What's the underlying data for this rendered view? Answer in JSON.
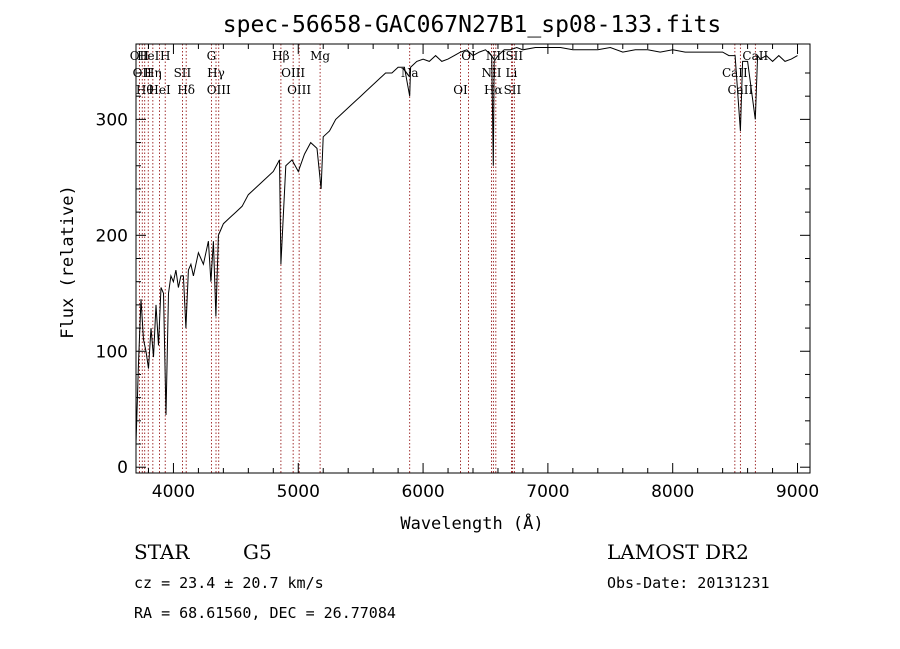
{
  "chart_data": {
    "type": "line",
    "title": "spec-56658-GAC067N27B1_sp08-133.fits",
    "xlabel": "Wavelength (Å)",
    "ylabel": "Flux (relative)",
    "xlim": [
      3700,
      9100
    ],
    "ylim": [
      -5,
      365
    ],
    "x_ticks": [
      4000,
      5000,
      6000,
      7000,
      8000,
      9000
    ],
    "y_ticks": [
      0,
      100,
      200,
      300
    ],
    "grid": false,
    "series_color": "#000000",
    "marker_color": "#8b0000",
    "series": [
      {
        "x": [
          3700,
          3720,
          3740,
          3760,
          3780,
          3800,
          3820,
          3840,
          3860,
          3880,
          3900,
          3920,
          3940,
          3960,
          3980,
          4000,
          4020,
          4040,
          4060,
          4080,
          4100,
          4120,
          4140,
          4160,
          4180,
          4200,
          4220,
          4240,
          4260,
          4280,
          4300,
          4320,
          4340,
          4360,
          4380,
          4400,
          4450,
          4500,
          4550,
          4600,
          4650,
          4700,
          4750,
          4800,
          4850,
          4861,
          4900,
          4950,
          5000,
          5050,
          5100,
          5150,
          5183,
          5200,
          5250,
          5300,
          5350,
          5400,
          5450,
          5500,
          5550,
          5600,
          5650,
          5700,
          5750,
          5800,
          5850,
          5893,
          5900,
          5950,
          6000,
          6050,
          6100,
          6150,
          6200,
          6250,
          6300,
          6350,
          6400,
          6450,
          6500,
          6550,
          6563,
          6570,
          6600,
          6650,
          6700,
          6750,
          6800,
          6900,
          7000,
          7100,
          7200,
          7300,
          7400,
          7500,
          7600,
          7700,
          7800,
          7900,
          8000,
          8100,
          8200,
          8300,
          8400,
          8450,
          8500,
          8542,
          8560,
          8600,
          8662,
          8680,
          8700,
          8750,
          8800,
          8850,
          8900,
          8950,
          9000
        ],
        "values": [
          20,
          90,
          145,
          110,
          100,
          85,
          120,
          95,
          140,
          105,
          155,
          150,
          45,
          150,
          165,
          160,
          170,
          155,
          165,
          165,
          120,
          170,
          175,
          165,
          175,
          185,
          180,
          175,
          185,
          195,
          160,
          195,
          130,
          200,
          205,
          210,
          215,
          220,
          225,
          235,
          240,
          245,
          250,
          255,
          265,
          175,
          260,
          265,
          255,
          270,
          280,
          275,
          240,
          285,
          290,
          300,
          305,
          310,
          315,
          320,
          325,
          330,
          335,
          340,
          340,
          345,
          345,
          320,
          345,
          350,
          352,
          350,
          355,
          350,
          352,
          355,
          358,
          360,
          355,
          358,
          360,
          355,
          260,
          350,
          355,
          360,
          360,
          362,
          360,
          362,
          362,
          362,
          360,
          360,
          360,
          362,
          358,
          360,
          360,
          358,
          360,
          358,
          358,
          358,
          358,
          355,
          355,
          290,
          350,
          350,
          300,
          355,
          352,
          355,
          350,
          355,
          350,
          352,
          355
        ]
      }
    ],
    "markers": [
      {
        "x": 3727,
        "label": "OII"
      },
      {
        "x": 3750,
        "label": "OII"
      },
      {
        "x": 3770,
        "label": "Hθ"
      },
      {
        "x": 3798,
        "label": "HeI"
      },
      {
        "x": 3835,
        "label": "Hη"
      },
      {
        "x": 3889,
        "label": "HeI"
      },
      {
        "x": 3934,
        "label": "H"
      },
      {
        "x": 4072,
        "label": "SII"
      },
      {
        "x": 4102,
        "label": "Hδ"
      },
      {
        "x": 4304,
        "label": "G"
      },
      {
        "x": 4341,
        "label": "Hγ"
      },
      {
        "x": 4363,
        "label": "OIII"
      },
      {
        "x": 4861,
        "label": "Hβ"
      },
      {
        "x": 4959,
        "label": "OIII"
      },
      {
        "x": 5007,
        "label": "OIII"
      },
      {
        "x": 5175,
        "label": "Mg"
      },
      {
        "x": 5893,
        "label": "Na"
      },
      {
        "x": 6300,
        "label": "OI"
      },
      {
        "x": 6364,
        "label": "OI"
      },
      {
        "x": 6548,
        "label": "NII"
      },
      {
        "x": 6563,
        "label": "Hα"
      },
      {
        "x": 6583,
        "label": "NII"
      },
      {
        "x": 6708,
        "label": "Li"
      },
      {
        "x": 6716,
        "label": "SII"
      },
      {
        "x": 6731,
        "label": "SII"
      },
      {
        "x": 8498,
        "label": "CaII"
      },
      {
        "x": 8542,
        "label": "CaII"
      },
      {
        "x": 8662,
        "label": "CaII"
      }
    ]
  },
  "info": {
    "object_class": "STAR",
    "subclass": "G5",
    "survey": "LAMOST DR2",
    "cz": "cz = 23.4 ± 20.7 km/s",
    "obs_date": "Obs-Date: 20131231",
    "coords": "RA =  68.61560, DEC =  26.77084"
  }
}
